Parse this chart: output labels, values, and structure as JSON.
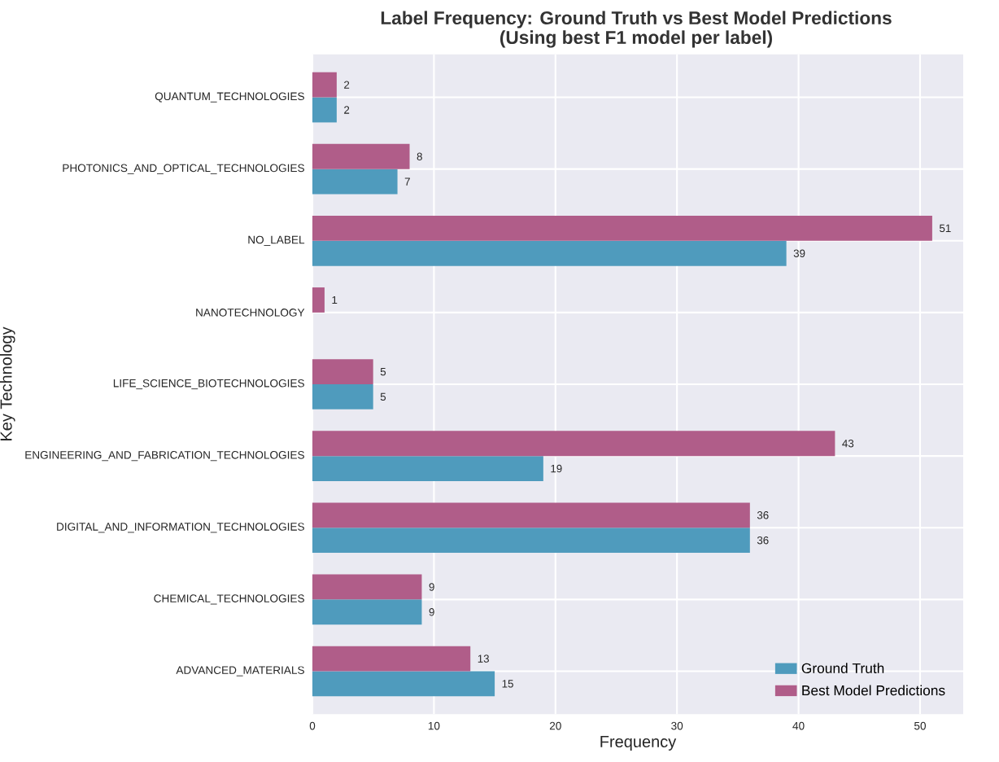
{
  "chart_data": {
    "type": "bar",
    "orientation": "horizontal",
    "title": "Label Frequency: Ground Truth vs Best Model Predictions",
    "subtitle": "(Using best F1 model per label)",
    "xlabel": "Frequency",
    "ylabel": "Key Technology",
    "categories": [
      "QUANTUM_TECHNOLOGIES",
      "PHOTONICS_AND_OPTICAL_TECHNOLOGIES",
      "NO_LABEL",
      "NANOTECHNOLOGY",
      "LIFE_SCIENCE_BIOTECHNOLOGIES",
      "ENGINEERING_AND_FABRICATION_TECHNOLOGIES",
      "DIGITAL_AND_INFORMATION_TECHNOLOGIES",
      "CHEMICAL_TECHNOLOGIES",
      "ADVANCED_MATERIALS"
    ],
    "series": [
      {
        "name": "Ground Truth",
        "color": "#4f9bbd",
        "values": [
          2,
          7,
          39,
          0,
          5,
          19,
          36,
          9,
          15
        ],
        "value_labels": [
          "2",
          "7",
          "39",
          null,
          "5",
          "19",
          "36",
          "9",
          "15"
        ]
      },
      {
        "name": "Best Model Predictions",
        "color": "#b05d89",
        "values": [
          2,
          8,
          51,
          1,
          5,
          43,
          36,
          9,
          13
        ],
        "value_labels": [
          "2",
          "8",
          "51",
          "1",
          "5",
          "43",
          "36",
          "9",
          "13"
        ]
      }
    ],
    "xlim": [
      0,
      53.55
    ],
    "xticks": [
      0,
      10,
      20,
      30,
      40,
      50
    ],
    "grid": true,
    "legend": "bottom right"
  }
}
